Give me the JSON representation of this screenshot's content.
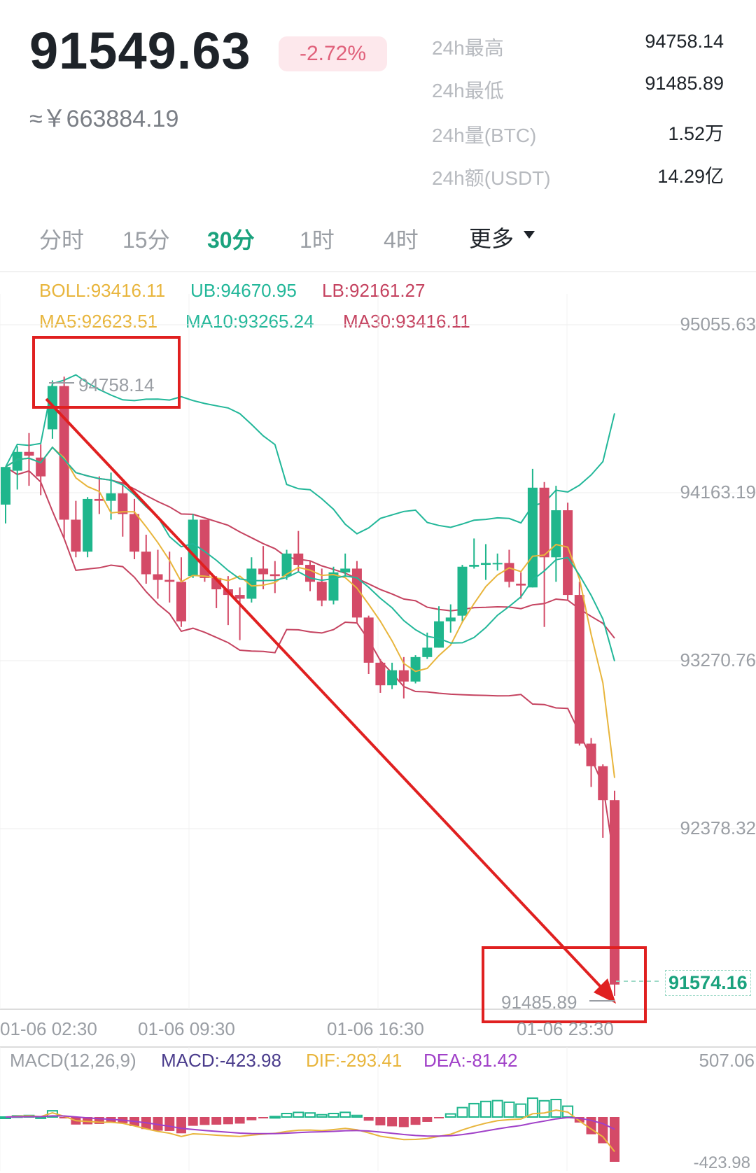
{
  "ticker": {
    "price": "91549.63",
    "change": "-2.72%",
    "cny": "≈￥663884.19"
  },
  "stats": [
    {
      "label": "24h最高",
      "value": "94758.14"
    },
    {
      "label": "24h最低",
      "value": "91485.89"
    },
    {
      "label": "24h量(BTC)",
      "value": "1.52万"
    },
    {
      "label": "24h额(USDT)",
      "value": "14.29亿"
    }
  ],
  "tabs": {
    "items": [
      "分时",
      "15分",
      "30分",
      "1时",
      "4时"
    ],
    "active": "30分",
    "more": "更多"
  },
  "indicators": {
    "boll": "BOLL:93416.11",
    "ub": "UB:94670.95",
    "lb": "LB:92161.27",
    "ma5": "MA5:92623.51",
    "ma10": "MA10:93265.24",
    "ma30": "MA30:93416.11"
  },
  "colors": {
    "up": "#1fb68c",
    "down": "#d44a67",
    "ma5": "#e8b53c",
    "ma10": "#22b799",
    "ma30": "#c54360",
    "annotation": "#e02020",
    "dif": "#e8b53c",
    "dea": "#a040c8"
  },
  "chart_data": {
    "type": "candlestick",
    "y_ticks": [
      "95055.63",
      "94163.19",
      "93270.76",
      "92378.32"
    ],
    "y_tick_values": [
      95055.63,
      94163.19,
      93270.76,
      92378.32
    ],
    "x_ticks": [
      "01-06 02:30",
      "01-06 09:30",
      "01-06 16:30",
      "01-06 23:30"
    ],
    "high_label": "94758.14",
    "low_label": "91485.89",
    "current_price": "91574.16",
    "candles": [
      [
        94100,
        94300,
        94000,
        94300
      ],
      [
        94280,
        94410,
        94180,
        94380
      ],
      [
        94380,
        94480,
        94200,
        94360
      ],
      [
        94350,
        94420,
        94150,
        94250
      ],
      [
        94500,
        94760,
        94450,
        94730
      ],
      [
        94730,
        94780,
        93920,
        94020
      ],
      [
        94020,
        94120,
        93820,
        93850
      ],
      [
        93850,
        94140,
        93820,
        94130
      ],
      [
        94130,
        94250,
        94050,
        94120
      ],
      [
        94120,
        94270,
        94020,
        94160
      ],
      [
        94160,
        94230,
        93930,
        94050
      ],
      [
        94050,
        94130,
        93810,
        93850
      ],
      [
        93850,
        93940,
        93680,
        93730
      ],
      [
        93730,
        93860,
        93600,
        93700
      ],
      [
        93700,
        93850,
        93580,
        93690
      ],
      [
        93690,
        93820,
        93450,
        93480
      ],
      [
        93720,
        94050,
        93710,
        94020
      ],
      [
        94020,
        94020,
        93690,
        93710
      ],
      [
        93710,
        93720,
        93550,
        93650
      ],
      [
        93650,
        93720,
        93460,
        93620
      ],
      [
        93620,
        93660,
        93380,
        93600
      ],
      [
        93600,
        93820,
        93580,
        93760
      ],
      [
        93760,
        93880,
        93650,
        93730
      ],
      [
        93730,
        93800,
        93630,
        93720
      ],
      [
        93720,
        93860,
        93700,
        93840
      ],
      [
        93840,
        93960,
        93740,
        93780
      ],
      [
        93780,
        93800,
        93640,
        93690
      ],
      [
        93690,
        93760,
        93560,
        93590
      ],
      [
        93590,
        93770,
        93570,
        93740
      ],
      [
        93740,
        93840,
        93720,
        93760
      ],
      [
        93760,
        93800,
        93470,
        93500
      ],
      [
        93500,
        93510,
        93200,
        93260
      ],
      [
        93260,
        93280,
        93100,
        93140
      ],
      [
        93140,
        93260,
        93120,
        93220
      ],
      [
        93220,
        93290,
        93070,
        93160
      ],
      [
        93160,
        93300,
        93150,
        93290
      ],
      [
        93290,
        93420,
        93280,
        93340
      ],
      [
        93340,
        93560,
        93340,
        93480
      ],
      [
        93480,
        93570,
        93420,
        93500
      ],
      [
        93510,
        93780,
        93480,
        93770
      ],
      [
        93770,
        93920,
        93760,
        93780
      ],
      [
        93780,
        93890,
        93700,
        93790
      ],
      [
        93790,
        93840,
        93750,
        93790
      ],
      [
        93790,
        93860,
        93660,
        93690
      ],
      [
        93680,
        93740,
        93600,
        93670
      ],
      [
        93660,
        94290,
        93660,
        94190
      ],
      [
        94190,
        94220,
        93450,
        93820
      ],
      [
        93820,
        94200,
        93690,
        94070
      ],
      [
        94070,
        94110,
        93590,
        93620
      ],
      [
        93620,
        93690,
        92820,
        92830
      ],
      [
        92830,
        92860,
        92600,
        92710
      ],
      [
        92710,
        92720,
        92330,
        92530
      ],
      [
        92530,
        92580,
        91490,
        91550
      ]
    ]
  },
  "macd": {
    "params": "MACD(12,26,9)",
    "macd": "MACD:-423.98",
    "dif": "DIF:-293.41",
    "dea": "DEA:-81.42",
    "top_ref": "507.06",
    "bottom_ref": "-423.98"
  }
}
